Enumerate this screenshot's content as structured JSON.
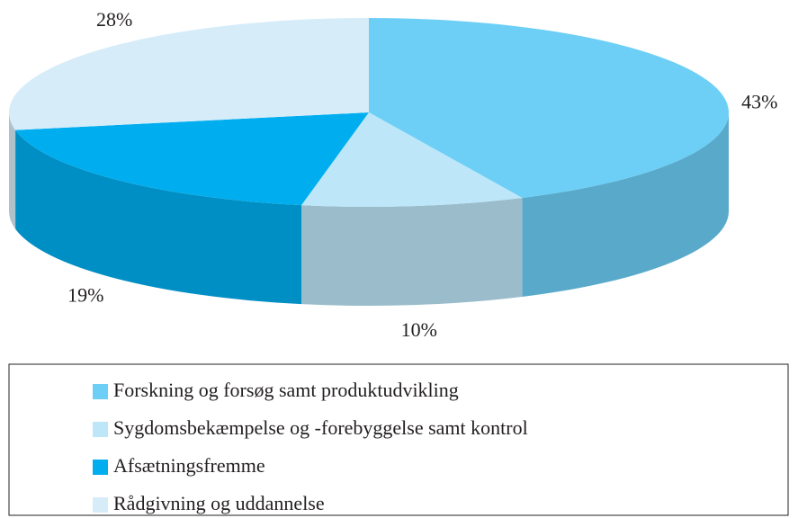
{
  "chart_data": {
    "type": "pie3d",
    "categories": [
      "Forskning og forsøg samt produktudvikling",
      "Sygdomsbekæmpelse og -forebyggelse samt kontrol",
      "Afsætningsfremme",
      "Rådgivning og uddannelse"
    ],
    "values": [
      43,
      10,
      19,
      28
    ],
    "value_labels": [
      "43%",
      "10%",
      "19%",
      "28%"
    ],
    "colors": [
      "#6dcff6",
      "#bde6f8",
      "#00aeef",
      "#d6ecf9"
    ],
    "legend": "bottom"
  }
}
